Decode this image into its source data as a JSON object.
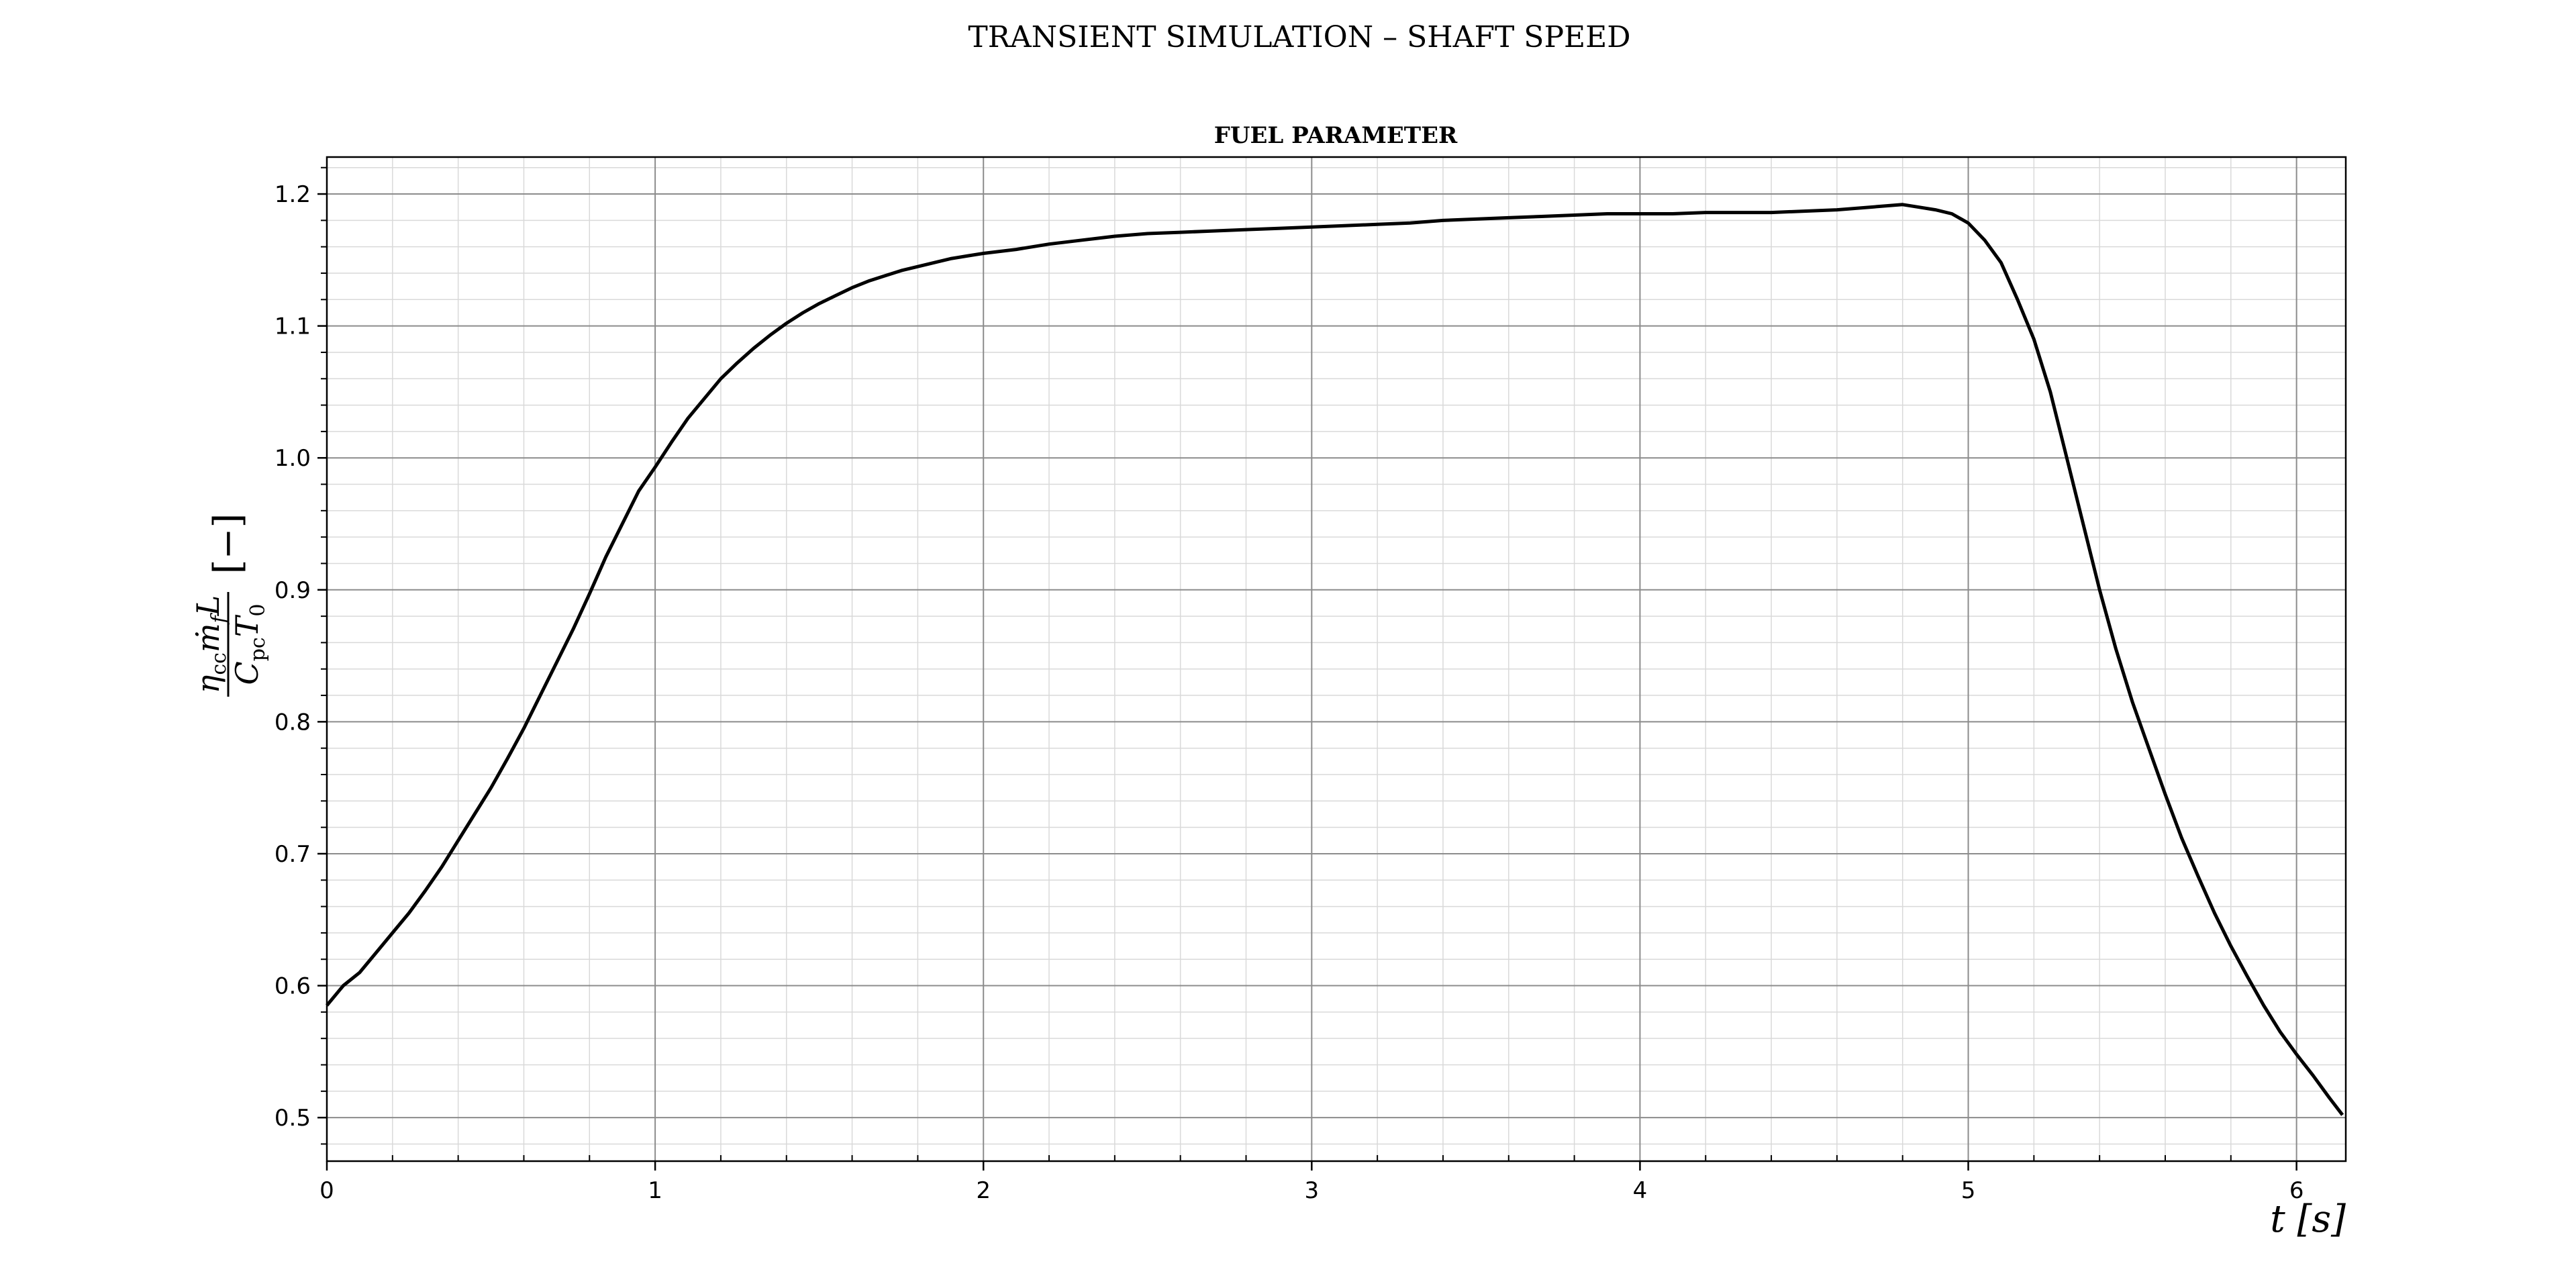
{
  "chart_data": {
    "type": "line",
    "suptitle": "TRANSIENT SIMULATION – SHAFT SPEED",
    "title": "FUEL PARAMETER",
    "xlabel": "t [s]",
    "ylabel": {
      "eta": "η",
      "eta_sub": "cc",
      "m": "ṁ",
      "m_sub": "f",
      "L": "L",
      "C": "C",
      "C_sub": "pc",
      "T": "T",
      "T_sub": "0",
      "unit": "[−]"
    },
    "xlim": [
      0,
      6.15
    ],
    "ylim": [
      0.467,
      1.228
    ],
    "x_ticks": [
      0,
      1,
      2,
      3,
      4,
      5,
      6
    ],
    "x_tick_labels": [
      "0",
      "1",
      "2",
      "3",
      "4",
      "5",
      "6"
    ],
    "y_ticks": [
      0.5,
      0.6,
      0.7,
      0.8,
      0.9,
      1.0,
      1.1,
      1.2
    ],
    "y_tick_labels": [
      "0.5",
      "0.6",
      "0.7",
      "0.8",
      "0.9",
      "1.0",
      "1.1",
      "1.2"
    ],
    "grid": true,
    "minor_grid": true,
    "line_color": "#000000",
    "series": [
      {
        "x": [
          0.0,
          0.05,
          0.1,
          0.15,
          0.2,
          0.25,
          0.3,
          0.35,
          0.4,
          0.45,
          0.5,
          0.55,
          0.6,
          0.65,
          0.7,
          0.75,
          0.8,
          0.85,
          0.9,
          0.95,
          1.0,
          1.05,
          1.1,
          1.15,
          1.2,
          1.25,
          1.3,
          1.35,
          1.4,
          1.45,
          1.5,
          1.55,
          1.6,
          1.65,
          1.7,
          1.75,
          1.8,
          1.85,
          1.9,
          1.95,
          2.0,
          2.1,
          2.2,
          2.3,
          2.4,
          2.5,
          2.6,
          2.7,
          2.8,
          2.9,
          3.0,
          3.1,
          3.2,
          3.3,
          3.4,
          3.5,
          3.6,
          3.7,
          3.8,
          3.9,
          4.0,
          4.1,
          4.2,
          4.3,
          4.4,
          4.5,
          4.6,
          4.7,
          4.8,
          4.85,
          4.9,
          4.95,
          5.0,
          5.05,
          5.1,
          5.15,
          5.2,
          5.25,
          5.3,
          5.35,
          5.4,
          5.45,
          5.5,
          5.55,
          5.6,
          5.65,
          5.7,
          5.75,
          5.8,
          5.85,
          5.9,
          5.95,
          6.0,
          6.05,
          6.1,
          6.14
        ],
        "y": [
          0.585,
          0.6,
          0.61,
          0.625,
          0.64,
          0.655,
          0.672,
          0.69,
          0.71,
          0.73,
          0.75,
          0.772,
          0.795,
          0.82,
          0.845,
          0.87,
          0.897,
          0.925,
          0.95,
          0.975,
          0.993,
          1.012,
          1.03,
          1.045,
          1.06,
          1.072,
          1.083,
          1.093,
          1.102,
          1.11,
          1.117,
          1.123,
          1.129,
          1.134,
          1.138,
          1.142,
          1.145,
          1.148,
          1.151,
          1.153,
          1.155,
          1.158,
          1.162,
          1.165,
          1.168,
          1.17,
          1.171,
          1.172,
          1.173,
          1.174,
          1.175,
          1.176,
          1.177,
          1.178,
          1.18,
          1.181,
          1.182,
          1.183,
          1.184,
          1.185,
          1.185,
          1.185,
          1.186,
          1.186,
          1.186,
          1.187,
          1.188,
          1.19,
          1.192,
          1.19,
          1.188,
          1.185,
          1.178,
          1.165,
          1.148,
          1.12,
          1.09,
          1.05,
          1.0,
          0.95,
          0.9,
          0.855,
          0.815,
          0.78,
          0.745,
          0.712,
          0.683,
          0.655,
          0.63,
          0.607,
          0.585,
          0.565,
          0.548,
          0.532,
          0.515,
          0.502
        ]
      }
    ]
  }
}
